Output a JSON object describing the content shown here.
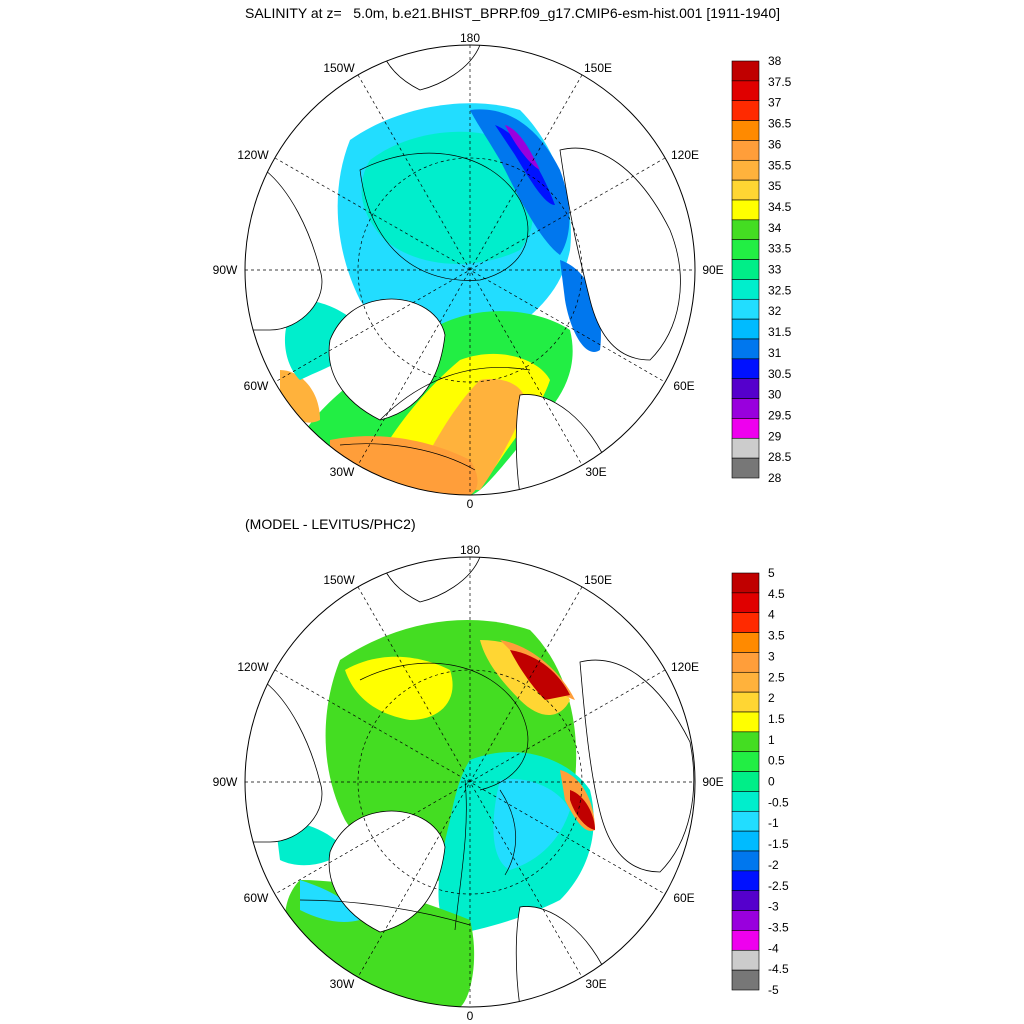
{
  "titles": {
    "top": "SALINITY at z=   5.0m, b.e21.BHIST_BPRP.f09_g17.CMIP6-esm-hist.001 [1911-1940]",
    "bottom": "(MODEL - LEVITUS/PHC2)"
  },
  "longitude_labels": [
    "180",
    "150E",
    "120E",
    "90E",
    "60E",
    "30E",
    "0",
    "30W",
    "60W",
    "90W",
    "120W",
    "150W"
  ],
  "top_colorbar": {
    "labels": [
      "38",
      "37.5",
      "37",
      "36.5",
      "36",
      "35.5",
      "35",
      "34.5",
      "34",
      "33.5",
      "33",
      "32.5",
      "32",
      "31.5",
      "31",
      "30.5",
      "30",
      "29.5",
      "29",
      "28.5",
      "28"
    ],
    "colors": [
      "#c00000",
      "#e00000",
      "#ff2a00",
      "#ff8a00",
      "#ff9e3a",
      "#ffb23c",
      "#ffd633",
      "#ffff00",
      "#44dd22",
      "#22ee44",
      "#00ee88",
      "#00eecc",
      "#22ddff",
      "#00bbff",
      "#0077ee",
      "#0011ff",
      "#5500cc",
      "#9900dd",
      "#ee00ee",
      "#cccccc",
      "#777777"
    ]
  },
  "bottom_colorbar": {
    "labels": [
      "5",
      "4.5",
      "4",
      "3.5",
      "3",
      "2.5",
      "2",
      "1.5",
      "1",
      "0.5",
      "0",
      "-0.5",
      "-1",
      "-1.5",
      "-2",
      "-2.5",
      "-3",
      "-3.5",
      "-4",
      "-4.5",
      "-5"
    ],
    "colors": [
      "#c00000",
      "#e00000",
      "#ff2a00",
      "#ff8a00",
      "#ff9e3a",
      "#ffb23c",
      "#ffd633",
      "#ffff00",
      "#44dd22",
      "#22ee44",
      "#00ee88",
      "#00eecc",
      "#22ddff",
      "#00bbff",
      "#0077ee",
      "#0011ff",
      "#5500cc",
      "#9900dd",
      "#ee00ee",
      "#cccccc",
      "#777777"
    ]
  }
}
